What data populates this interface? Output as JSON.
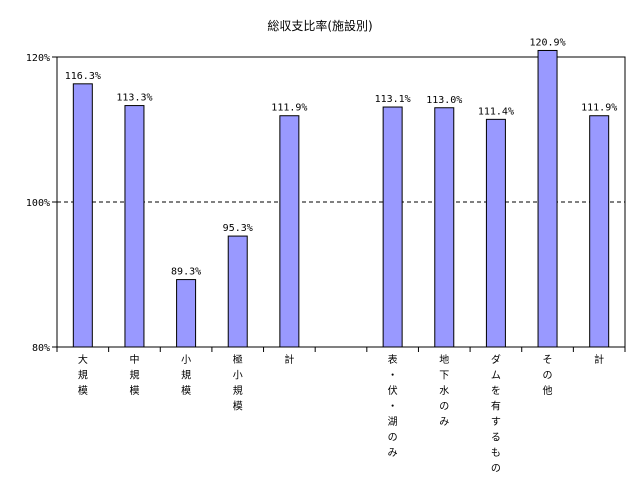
{
  "chart_data": {
    "type": "bar",
    "title": "総収支比率(施設別)",
    "xlabel": "",
    "ylabel": "",
    "ylim": [
      80,
      120
    ],
    "yticks": [
      80,
      100,
      120
    ],
    "ytick_labels": [
      "80%",
      "100%",
      "120%"
    ],
    "grid": "dashed lines at 100% and 120%",
    "legend": "none",
    "color": "#9999ff",
    "categories": [
      "大規模",
      "中規模",
      "小規模",
      "極小規模",
      "計",
      "",
      "表・伏・湖のみ",
      "地下水のみ",
      "ダムを有するもの",
      "その他",
      "計"
    ],
    "values": [
      116.3,
      113.3,
      89.3,
      95.3,
      111.9,
      null,
      113.1,
      113.0,
      111.4,
      120.9,
      111.9
    ],
    "data_labels": [
      "116.3%",
      "113.3%",
      "89.3%",
      "95.3%",
      "111.9%",
      "",
      "113.1%",
      "113.0%",
      "111.4%",
      "120.9%",
      "111.9%"
    ]
  }
}
